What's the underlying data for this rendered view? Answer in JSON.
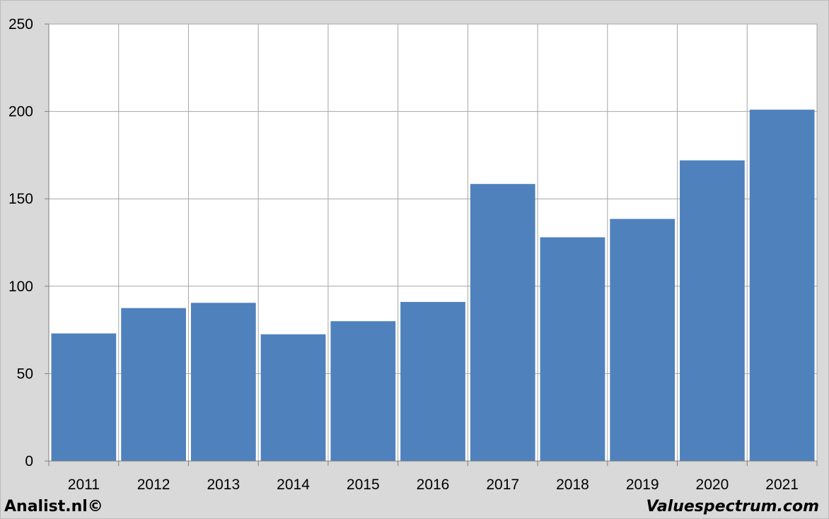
{
  "chart_data": {
    "type": "bar",
    "categories": [
      "2011",
      "2012",
      "2013",
      "2014",
      "2015",
      "2016",
      "2017",
      "2018",
      "2019",
      "2020",
      "2021"
    ],
    "values": [
      73,
      87.5,
      90.5,
      72.5,
      80,
      91,
      158.5,
      128,
      138.5,
      172,
      201
    ],
    "ylim": [
      0,
      250
    ],
    "yticks": [
      0,
      50,
      100,
      150,
      200,
      250
    ],
    "grid": true,
    "colors": {
      "bar": "#4f81bd",
      "grid": "#a6a6a6",
      "plot_bg": "#ffffff",
      "page_bg": "#d9d9d9"
    }
  },
  "footer": {
    "left": "Analist.nl©",
    "right": "Valuespectrum.com"
  }
}
